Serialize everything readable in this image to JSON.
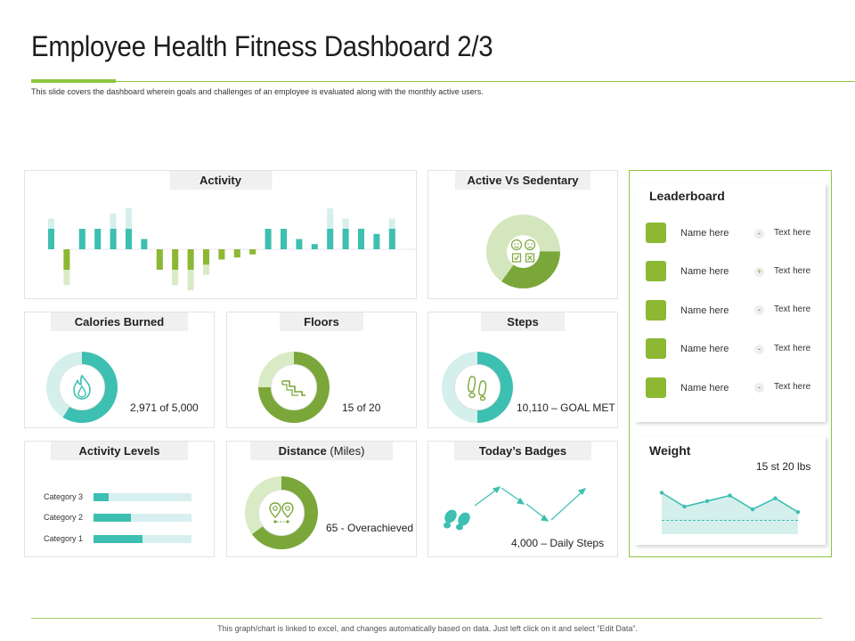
{
  "header": {
    "title": "Employee Health Fitness Dashboard 2/3",
    "subtitle": "This slide covers the dashboard wherein goals and challenges of an employee is evaluated along with the monthly active users."
  },
  "colors": {
    "green": "#8cb833",
    "teal": "#3dbfb1",
    "light_green": "#d9ebc4",
    "light_teal": "#d4efec"
  },
  "activity": {
    "title": "Activity",
    "chart_data": {
      "type": "bar",
      "title": "Activity",
      "values": [
        2,
        -2,
        2,
        2,
        2,
        2,
        1,
        -2,
        -2,
        -2,
        -1.5,
        -1,
        -0.8,
        -0.5,
        2,
        2,
        1,
        0.5,
        2,
        2,
        2,
        1.5,
        2
      ],
      "background_values": [
        3,
        -3.5,
        2,
        2,
        3.5,
        4,
        1,
        -2,
        -3.5,
        -4,
        -2.5,
        -1,
        -0.8,
        -0.5,
        2,
        2,
        1,
        0.5,
        4,
        3,
        2,
        1.5,
        3
      ]
    }
  },
  "active_sedentary": {
    "title": "Active Vs Sedentary",
    "active_percent": 35
  },
  "calories": {
    "title": "Calories Burned",
    "value": "2,971 of 5,000",
    "percent": 59
  },
  "floors": {
    "title": "Floors",
    "value": "15 of 20",
    "percent": 75
  },
  "steps": {
    "title": "Steps",
    "value": "10,110 – GOAL MET",
    "percent": 50
  },
  "activity_levels": {
    "title": "Activity Levels",
    "categories": [
      {
        "label": "Category 3",
        "percent": 15
      },
      {
        "label": "Category 2",
        "percent": 38
      },
      {
        "label": "Category 1",
        "percent": 50
      }
    ]
  },
  "distance": {
    "title_bold": "Distance",
    "title_light": "(Miles)",
    "value": "65 - Overachieved",
    "percent": 65
  },
  "badges": {
    "title": "Today’s Badges",
    "value": "4,000 – Daily Steps"
  },
  "leaderboard": {
    "title": "Leaderboard",
    "rows": [
      {
        "name": "Name here",
        "sign": "-",
        "text": "Text here"
      },
      {
        "name": "Name here",
        "sign": "+",
        "text": "Text here"
      },
      {
        "name": "Name here",
        "sign": "-",
        "text": "Text here"
      },
      {
        "name": "Name here",
        "sign": "-",
        "text": "Text here"
      },
      {
        "name": "Name here",
        "sign": "-",
        "text": "Text here"
      }
    ]
  },
  "weight": {
    "title": "Weight",
    "value": "15 st 20 lbs",
    "chart_data": {
      "type": "area",
      "values": [
        7.5,
        5,
        6,
        7,
        4.5,
        6.5,
        4
      ],
      "target": 2.5,
      "ylim": [
        0,
        10
      ]
    }
  },
  "footer": {
    "note": "This graph/chart is linked to excel, and changes automatically based on data. Just left click on it and select “Edit Data”."
  }
}
